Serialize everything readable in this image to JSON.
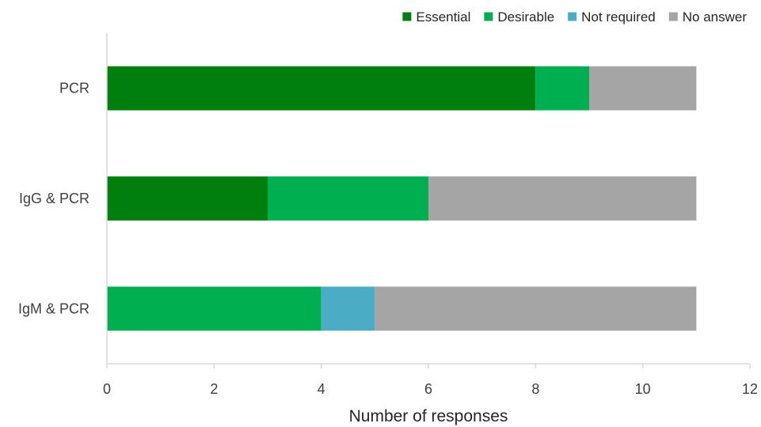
{
  "chart_data": {
    "type": "bar",
    "orientation": "horizontal",
    "stacked": true,
    "categories": [
      "PCR",
      "IgG & PCR",
      "IgM & PCR"
    ],
    "series": [
      {
        "name": "Essential",
        "color": "#007f0e",
        "values": [
          8,
          3,
          0
        ]
      },
      {
        "name": "Desirable",
        "color": "#00b050",
        "values": [
          1,
          3,
          4
        ]
      },
      {
        "name": "Not required",
        "color": "#4bacc6",
        "values": [
          0,
          0,
          1
        ]
      },
      {
        "name": "No answer",
        "color": "#a5a5a5",
        "values": [
          2,
          5,
          6
        ]
      }
    ],
    "xlabel": "Number of responses",
    "xlim": [
      0,
      12
    ],
    "xticks": [
      0,
      2,
      4,
      6,
      8,
      10,
      12
    ],
    "grid": false,
    "legend_position": "top"
  }
}
